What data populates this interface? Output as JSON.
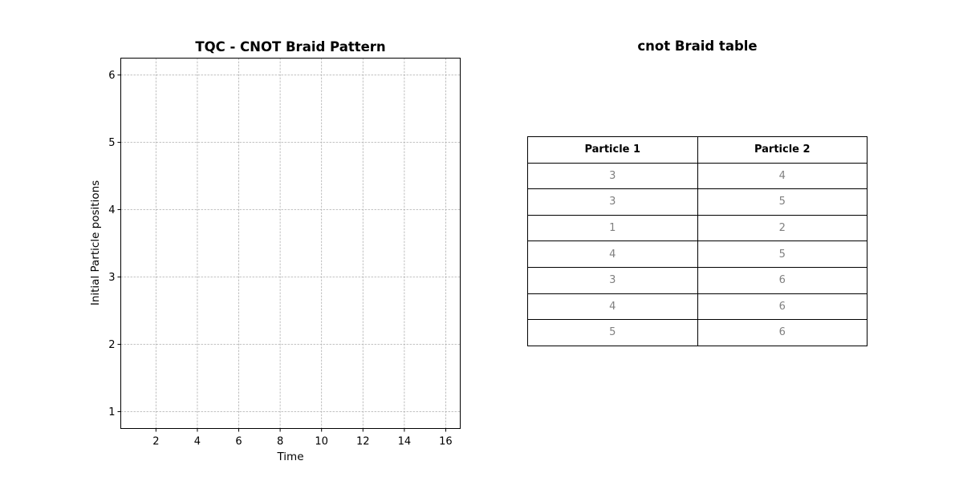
{
  "chart_data": [
    {
      "type": "line",
      "title": "TQC - CNOT Braid Pattern",
      "xlabel": "Time",
      "ylabel": "Initial Particle positions",
      "xlim": [
        0.3,
        16.7
      ],
      "ylim": [
        0.75,
        6.25
      ],
      "xticks": [
        2,
        4,
        6,
        8,
        10,
        12,
        14,
        16
      ],
      "yticks": [
        1,
        2,
        3,
        4,
        5,
        6
      ],
      "grid": true,
      "series": []
    },
    {
      "type": "table",
      "title": "cnot Braid table",
      "columns": [
        "Particle 1",
        "Particle 2"
      ],
      "rows": [
        [
          "3",
          "4"
        ],
        [
          "3",
          "5"
        ],
        [
          "1",
          "2"
        ],
        [
          "4",
          "5"
        ],
        [
          "3",
          "6"
        ],
        [
          "4",
          "6"
        ],
        [
          "5",
          "6"
        ]
      ]
    }
  ]
}
